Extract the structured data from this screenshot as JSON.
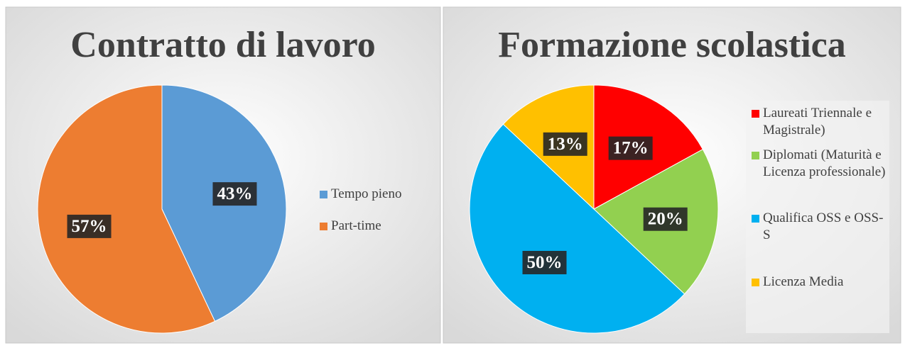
{
  "chart_data": [
    {
      "type": "pie",
      "title": "Contratto di lavoro",
      "categories": [
        "Tempo pieno",
        "Part-time"
      ],
      "values": [
        43,
        57
      ],
      "value_labels": [
        "43%",
        "57%"
      ],
      "colors": [
        "#5b9bd5",
        "#ed7d31"
      ]
    },
    {
      "type": "pie",
      "title": "Formazione scolastica",
      "categories": [
        "Laureati Triennale e Magistrale)",
        "Diplomati (Maturità e Licenza professionale)",
        "Qualifica OSS e OSS-S",
        "Licenza Media"
      ],
      "values": [
        17,
        20,
        50,
        13
      ],
      "value_labels": [
        "17%",
        "20%",
        "50%",
        "13%"
      ],
      "colors": [
        "#ff0000",
        "#92d050",
        "#00b0f0",
        "#ffc000"
      ]
    }
  ]
}
